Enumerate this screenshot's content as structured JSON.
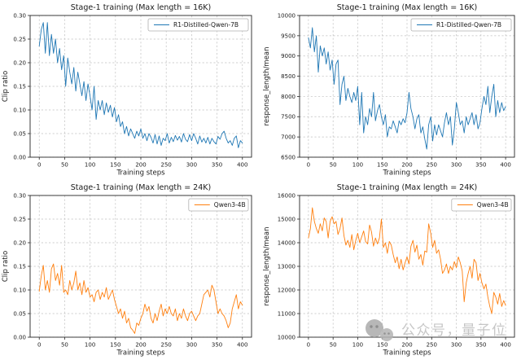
{
  "watermark": {
    "icon": "wechat-icon",
    "text": "公众号，量子位",
    "color": "#bdbdbd"
  },
  "chart_data": [
    {
      "id": "stage1-16k-clip-ratio",
      "type": "line",
      "title": "Stage-1 training (Max length = 16K)",
      "xlabel": "Training steps",
      "ylabel": "Clip ratio",
      "grid": true,
      "legend_position": "upper right",
      "xlim": [
        -18,
        418
      ],
      "ylim": [
        0,
        0.3
      ],
      "xticks": [
        0,
        50,
        100,
        150,
        200,
        250,
        300,
        350,
        400
      ],
      "yticks": [
        0,
        0.05,
        0.1,
        0.15,
        0.2,
        0.25,
        0.3
      ],
      "ydecimals": 2,
      "series": [
        {
          "name": "R1-Distilled-Qwen-7B",
          "color": "#1f77b4",
          "x": {
            "start": 0,
            "step": 4,
            "count": 101
          },
          "y": [
            0.235,
            0.27,
            0.285,
            0.22,
            0.285,
            0.215,
            0.26,
            0.22,
            0.25,
            0.2,
            0.23,
            0.185,
            0.215,
            0.15,
            0.21,
            0.18,
            0.155,
            0.19,
            0.14,
            0.18,
            0.155,
            0.13,
            0.16,
            0.12,
            0.155,
            0.13,
            0.1,
            0.15,
            0.08,
            0.12,
            0.1,
            0.12,
            0.09,
            0.115,
            0.095,
            0.11,
            0.085,
            0.105,
            0.075,
            0.09,
            0.065,
            0.075,
            0.05,
            0.065,
            0.045,
            0.06,
            0.05,
            0.04,
            0.055,
            0.045,
            0.06,
            0.04,
            0.05,
            0.035,
            0.05,
            0.042,
            0.03,
            0.048,
            0.028,
            0.045,
            0.025,
            0.04,
            0.035,
            0.05,
            0.03,
            0.042,
            0.033,
            0.046,
            0.036,
            0.044,
            0.032,
            0.05,
            0.038,
            0.033,
            0.048,
            0.035,
            0.05,
            0.04,
            0.028,
            0.045,
            0.032,
            0.04,
            0.03,
            0.042,
            0.028,
            0.04,
            0.033,
            0.028,
            0.044,
            0.038,
            0.05,
            0.055,
            0.04,
            0.03,
            0.035,
            0.025,
            0.04,
            0.045,
            0.02,
            0.035,
            0.03
          ]
        }
      ]
    },
    {
      "id": "stage1-16k-response-length",
      "type": "line",
      "title": "Stage-1 training (Max length = 16K)",
      "xlabel": "Training steps",
      "ylabel": "response_length/mean",
      "grid": true,
      "legend_position": "upper right",
      "xlim": [
        -18,
        418
      ],
      "ylim": [
        6500,
        10000
      ],
      "xticks": [
        0,
        50,
        100,
        150,
        200,
        250,
        300,
        350,
        400
      ],
      "yticks": [
        6500,
        7000,
        7500,
        8000,
        8500,
        9000,
        9500,
        10000
      ],
      "ydecimals": 0,
      "series": [
        {
          "name": "R1-Distilled-Qwen-7B",
          "color": "#1f77b4",
          "x": {
            "start": 0,
            "step": 4,
            "count": 101
          },
          "y": [
            9450,
            9200,
            9700,
            9100,
            9500,
            8600,
            9250,
            9000,
            9200,
            8800,
            9100,
            8650,
            8900,
            8300,
            8800,
            8900,
            7800,
            8300,
            8500,
            7900,
            8200,
            8000,
            7850,
            8100,
            7900,
            8250,
            7300,
            8100,
            7100,
            7500,
            7300,
            7700,
            7500,
            8100,
            7400,
            7650,
            7800,
            7500,
            7300,
            7550,
            7000,
            7250,
            7200,
            7400,
            7250,
            7100,
            7400,
            7300,
            7450,
            7350,
            7600,
            8100,
            7700,
            7500,
            7200,
            7450,
            7550,
            7100,
            7250,
            6950,
            6700,
            7300,
            7500,
            6900,
            7300,
            7050,
            7300,
            7150,
            7000,
            7350,
            7600,
            7300,
            7500,
            6800,
            7200,
            7850,
            7600,
            7300,
            7400,
            7100,
            7500,
            7300,
            7450,
            7600,
            7300,
            7550,
            7200,
            7350,
            7700,
            8000,
            7800,
            8250,
            7600,
            8000,
            8300,
            7500,
            7900,
            7600,
            7850,
            7650,
            7750
          ]
        }
      ]
    },
    {
      "id": "stage1-24k-clip-ratio",
      "type": "line",
      "title": "Stage-1 training (Max length = 24K)",
      "xlabel": "Training steps",
      "ylabel": "Clip ratio",
      "grid": true,
      "legend_position": "upper right",
      "xlim": [
        -18,
        418
      ],
      "ylim": [
        0,
        0.3
      ],
      "xticks": [
        0,
        50,
        100,
        150,
        200,
        250,
        300,
        350,
        400
      ],
      "yticks": [
        0,
        0.05,
        0.1,
        0.15,
        0.2,
        0.25,
        0.3
      ],
      "ydecimals": 2,
      "series": [
        {
          "name": "Qwen3-4B",
          "color": "#ff7f0e",
          "x": {
            "start": 0,
            "step": 4,
            "count": 101
          },
          "y": [
            0.097,
            0.13,
            0.152,
            0.1,
            0.12,
            0.095,
            0.145,
            0.155,
            0.12,
            0.135,
            0.11,
            0.152,
            0.095,
            0.1,
            0.09,
            0.12,
            0.1,
            0.115,
            0.14,
            0.1,
            0.115,
            0.09,
            0.12,
            0.095,
            0.105,
            0.085,
            0.09,
            0.075,
            0.095,
            0.1,
            0.08,
            0.095,
            0.085,
            0.105,
            0.08,
            0.09,
            0.1,
            0.08,
            0.065,
            0.05,
            0.06,
            0.04,
            0.055,
            0.03,
            0.04,
            0.02,
            0.015,
            0.008,
            0.03,
            0.025,
            0.04,
            0.05,
            0.07,
            0.055,
            0.065,
            0.04,
            0.03,
            0.05,
            0.035,
            0.055,
            0.07,
            0.045,
            0.06,
            0.05,
            0.065,
            0.05,
            0.045,
            0.06,
            0.035,
            0.05,
            0.04,
            0.06,
            0.045,
            0.035,
            0.05,
            0.055,
            0.045,
            0.035,
            0.045,
            0.05,
            0.07,
            0.09,
            0.095,
            0.1,
            0.085,
            0.11,
            0.1,
            0.075,
            0.05,
            0.06,
            0.05,
            0.045,
            0.035,
            0.02,
            0.03,
            0.06,
            0.075,
            0.09,
            0.06,
            0.075,
            0.068
          ]
        }
      ]
    },
    {
      "id": "stage1-24k-response-length",
      "type": "line",
      "title": "Stage-1 training (Max length = 24K)",
      "xlabel": "Training steps",
      "ylabel": "response_length/mean",
      "grid": true,
      "legend_position": "upper right",
      "xlim": [
        -18,
        418
      ],
      "ylim": [
        10000,
        16000
      ],
      "xticks": [
        0,
        50,
        100,
        150,
        200,
        250,
        300,
        350,
        400
      ],
      "yticks": [
        10000,
        11000,
        12000,
        13000,
        14000,
        15000,
        16000
      ],
      "ydecimals": 0,
      "series": [
        {
          "name": "Qwen3-4B",
          "color": "#ff7f0e",
          "x": {
            "start": 0,
            "step": 4,
            "count": 101
          },
          "y": [
            14200,
            14600,
            15480,
            14900,
            14600,
            14400,
            14800,
            14500,
            15050,
            14900,
            14200,
            14900,
            15100,
            14800,
            14900,
            14350,
            14600,
            15050,
            14300,
            13900,
            14100,
            13800,
            14350,
            13700,
            14100,
            14400,
            14000,
            14250,
            14500,
            14050,
            13950,
            14750,
            14450,
            13850,
            14200,
            13950,
            14200,
            15000,
            13800,
            14000,
            13550,
            14050,
            13900,
            13500,
            13150,
            13400,
            12900,
            13300,
            12850,
            13150,
            13400,
            13100,
            13850,
            14100,
            13600,
            13900,
            13300,
            13500,
            13050,
            13650,
            13600,
            14800,
            14400,
            13800,
            14100,
            13550,
            13700,
            13300,
            12700,
            12850,
            13100,
            12700,
            13000,
            12850,
            13200,
            12950,
            13400,
            13150,
            12800,
            11500,
            12300,
            12700,
            13000,
            12500,
            13300,
            13150,
            12400,
            12700,
            12300,
            12050,
            12250,
            11700,
            11300,
            11000,
            11900,
            11700,
            11400,
            11850,
            11300,
            11550,
            11350
          ]
        }
      ]
    }
  ],
  "style": {
    "grid_color": "#c0c0c0",
    "spine_color": "#262626",
    "text_color": "#1a1a1a",
    "legend_border": "#b0b0b0"
  }
}
